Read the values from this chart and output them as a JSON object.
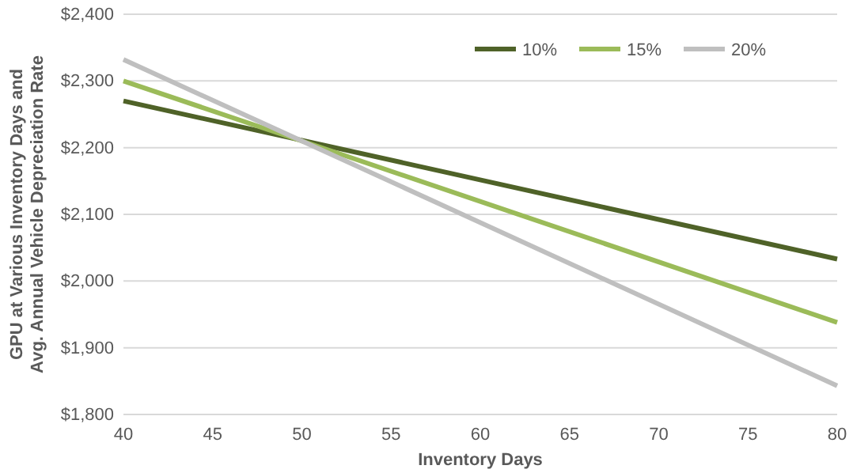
{
  "chart_data": {
    "type": "line",
    "xlabel": "Inventory Days",
    "ylabel": "GPU at Various Inventory Days and\nAvg. Annual Vehicle Depreciation Rate",
    "x": [
      40,
      50,
      80
    ],
    "series": [
      {
        "name": "10%",
        "color": "#4f6228",
        "values": [
          2270,
          2211,
          2033
        ]
      },
      {
        "name": "15%",
        "color": "#9bbb59",
        "values": [
          2300,
          2210,
          1938
        ]
      },
      {
        "name": "20%",
        "color": "#bfbfbf",
        "values": [
          2332,
          2210,
          1843
        ]
      }
    ],
    "xlim": [
      40,
      80
    ],
    "xticks": [
      40,
      45,
      50,
      55,
      60,
      65,
      70,
      75,
      80
    ],
    "ylim": [
      1800,
      2400
    ],
    "yticks": [
      {
        "value": 1800,
        "label": "$1,800"
      },
      {
        "value": 1900,
        "label": "$1,900"
      },
      {
        "value": 2000,
        "label": "$2,000"
      },
      {
        "value": 2100,
        "label": "$2,100"
      },
      {
        "value": 2200,
        "label": "$2,200"
      },
      {
        "value": 2300,
        "label": "$2,300"
      },
      {
        "value": 2400,
        "label": "$2,400"
      }
    ],
    "grid": "y",
    "legend": "top right",
    "marker": "none",
    "line_style": "solid"
  }
}
